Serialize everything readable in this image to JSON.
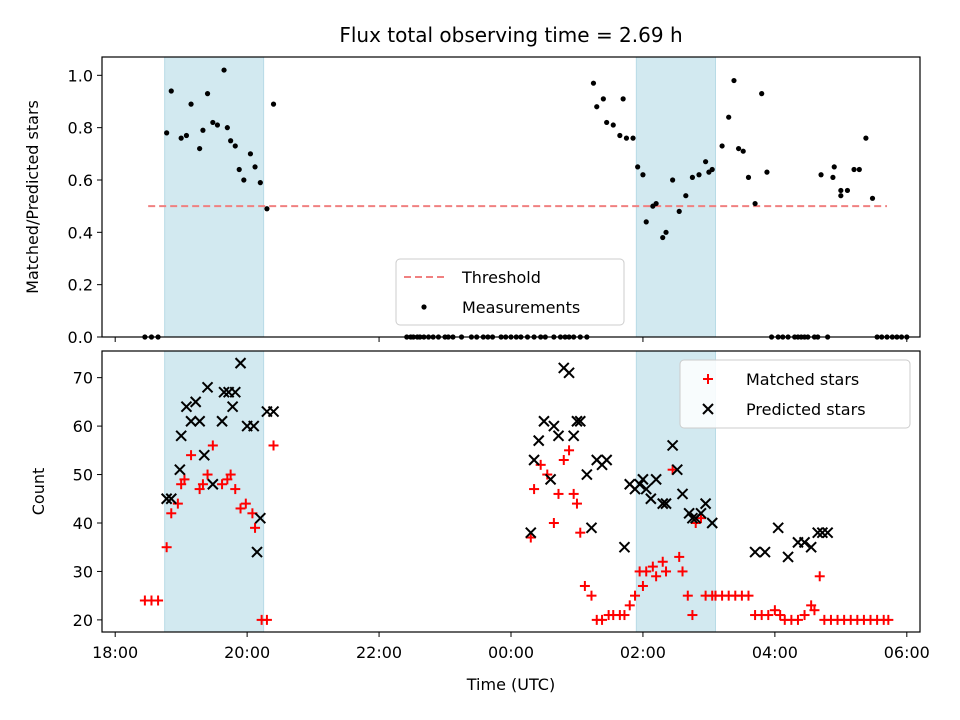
{
  "chart_data": [
    {
      "type": "scatter",
      "title": "Flux total observing time = 2.69 h",
      "ylabel": "Matched/Predicted stars",
      "xlabel": "",
      "ylim": [
        0,
        1.07
      ],
      "yticks": [
        "0.0",
        "0.2",
        "0.4",
        "0.6",
        "0.8",
        "1.0"
      ],
      "ytick_values": [
        0,
        0.2,
        0.4,
        0.6,
        0.8,
        1.0
      ],
      "x_unit": "hours since 18:00 UTC",
      "xlim": [
        -0.2,
        12.2
      ],
      "xtick_values": [
        0,
        4,
        8,
        12
      ],
      "shaded_intervals": [
        [
          0.75,
          2.25
        ],
        [
          7.9,
          9.1
        ]
      ],
      "shade_color": "#d2e9f0",
      "threshold": 0.5,
      "threshold_x_range": [
        0.5,
        11.7
      ],
      "threshold_color": "#f08080",
      "point_color": "#000000",
      "legend": {
        "position": "lower-center",
        "entries": [
          "Threshold",
          "Measurements"
        ]
      },
      "series": [
        {
          "name": "Measurements",
          "x": [
            0.45,
            0.55,
            0.65,
            0.78,
            0.85,
            1.0,
            1.08,
            1.15,
            1.28,
            1.33,
            1.4,
            1.48,
            1.55,
            1.65,
            1.7,
            1.75,
            1.82,
            1.88,
            1.95,
            2.05,
            2.12,
            2.2,
            2.3,
            2.4,
            7.25,
            7.3,
            7.4,
            7.45,
            7.55,
            7.65,
            7.7,
            7.75,
            7.85,
            7.92,
            8.0,
            8.05,
            8.15,
            8.2,
            8.3,
            8.35,
            8.45,
            8.55,
            8.65,
            8.75,
            8.85,
            8.95,
            9.0,
            9.05,
            9.2,
            9.3,
            9.38,
            9.45,
            9.52,
            9.6,
            9.7,
            9.8,
            9.88,
            9.95,
            10.05,
            10.12,
            10.2,
            10.3,
            10.35,
            10.4,
            10.45,
            10.5,
            10.6,
            10.65,
            10.7,
            10.8,
            10.9,
            11.0,
            4.42,
            4.48,
            4.52,
            4.58,
            4.62,
            4.68,
            4.75,
            4.82,
            4.9,
            5.0,
            5.05,
            5.12,
            5.25,
            5.4,
            5.48,
            5.58,
            5.65,
            5.72,
            5.85,
            5.92,
            6.0,
            6.08,
            6.15,
            6.25,
            6.35,
            6.45,
            6.52,
            6.65,
            6.75,
            6.82,
            6.88,
            6.95,
            7.05,
            7.15,
            10.88,
            11.0,
            11.1,
            11.2,
            11.28,
            11.38,
            11.48,
            11.55,
            11.62,
            11.7,
            11.78,
            11.85,
            11.92,
            12.0
          ],
          "y": [
            0.0,
            0.0,
            0.0,
            0.78,
            0.94,
            0.76,
            0.77,
            0.89,
            0.72,
            0.79,
            0.93,
            0.82,
            0.81,
            1.02,
            0.8,
            0.75,
            0.73,
            0.64,
            0.6,
            0.7,
            0.65,
            0.59,
            0.49,
            0.89,
            0.97,
            0.88,
            0.91,
            0.82,
            0.81,
            0.77,
            0.91,
            0.76,
            0.76,
            0.65,
            0.62,
            0.44,
            0.5,
            0.51,
            0.38,
            0.4,
            0.6,
            0.48,
            0.54,
            0.61,
            0.62,
            0.67,
            0.63,
            0.64,
            0.73,
            0.84,
            0.98,
            0.72,
            0.71,
            0.61,
            0.51,
            0.93,
            0.63,
            0.0,
            0.0,
            0.0,
            0.0,
            0.0,
            0.0,
            0.0,
            0.0,
            0.0,
            0.0,
            0.0,
            0.62,
            0.0,
            0.65,
            0.54,
            0.0,
            0.0,
            0.0,
            0.0,
            0.0,
            0.0,
            0.0,
            0.0,
            0.0,
            0.0,
            0.0,
            0.0,
            0.0,
            0.0,
            0.0,
            0.0,
            0.0,
            0.0,
            0.0,
            0.0,
            0.0,
            0.0,
            0.0,
            0.0,
            0.0,
            0.0,
            0.0,
            0.0,
            0.0,
            0.0,
            0.0,
            0.0,
            0.0,
            0.0,
            0.61,
            0.56,
            0.56,
            0.64,
            0.64,
            0.76,
            0.53,
            0.0,
            0.0,
            0.0,
            0.0,
            0.0,
            0.0,
            0.0
          ]
        }
      ]
    },
    {
      "type": "scatter",
      "title": "",
      "ylabel": "Count",
      "xlabel": "Time (UTC)",
      "ylim": [
        17.5,
        75.5
      ],
      "yticks": [
        "20",
        "30",
        "40",
        "50",
        "60",
        "70"
      ],
      "ytick_values": [
        20,
        30,
        40,
        50,
        60,
        70
      ],
      "x_unit": "hours since 18:00 UTC",
      "xlim": [
        -0.2,
        12.2
      ],
      "xticks": [
        "18:00",
        "20:00",
        "22:00",
        "00:00",
        "02:00",
        "04:00",
        "06:00"
      ],
      "xtick_values": [
        0,
        2,
        4,
        6,
        8,
        10,
        12
      ],
      "shaded_intervals": [
        [
          0.75,
          2.25
        ],
        [
          7.9,
          9.1
        ]
      ],
      "shade_color": "#d2e9f0",
      "legend": {
        "position": "top-right",
        "entries": [
          "Matched stars",
          "Predicted stars"
        ]
      },
      "series": [
        {
          "name": "Matched stars",
          "color": "#ff0000",
          "marker": "plus",
          "x": [
            0.45,
            0.55,
            0.65,
            0.78,
            0.85,
            0.95,
            1.0,
            1.05,
            1.15,
            1.28,
            1.33,
            1.4,
            1.48,
            1.62,
            1.7,
            1.75,
            1.82,
            1.9,
            1.98,
            2.08,
            2.12,
            2.22,
            2.3,
            2.4,
            6.3,
            6.35,
            6.45,
            6.55,
            6.65,
            6.72,
            6.8,
            6.88,
            6.95,
            7.0,
            7.05,
            7.12,
            7.22,
            7.3,
            7.38,
            7.48,
            7.55,
            7.65,
            7.72,
            7.8,
            7.88,
            7.95,
            8.0,
            8.05,
            8.15,
            8.2,
            8.3,
            8.35,
            8.45,
            8.55,
            8.6,
            8.68,
            8.75,
            8.8,
            8.88,
            8.95,
            9.05,
            9.1,
            9.2,
            9.3,
            9.4,
            9.5,
            9.6,
            9.7,
            9.8,
            9.9,
            10.0,
            10.08,
            10.15,
            10.25,
            10.35,
            10.45,
            10.55,
            10.6,
            10.68,
            10.75,
            10.85,
            10.95,
            11.05,
            11.15,
            11.25,
            11.35,
            11.45,
            11.55,
            11.65,
            11.72
          ],
          "y": [
            24,
            24,
            24,
            35,
            42,
            44,
            48,
            49,
            54,
            47,
            48,
            50,
            56,
            48,
            49,
            50,
            47,
            43,
            44,
            42,
            39,
            20,
            20,
            56,
            37,
            47,
            52,
            50,
            40,
            46,
            53,
            55,
            46,
            44,
            38,
            27,
            25,
            20,
            20,
            21,
            21,
            21,
            21,
            23,
            25,
            30,
            27,
            30,
            31,
            29,
            32,
            30,
            51,
            33,
            30,
            25,
            21,
            40,
            41,
            25,
            25,
            25,
            25,
            25,
            25,
            25,
            25,
            21,
            21,
            21,
            22,
            21,
            20,
            20,
            20,
            21,
            23,
            22,
            29,
            20,
            20,
            20,
            20,
            20,
            20,
            20,
            20,
            20,
            20,
            20
          ]
        },
        {
          "name": "Predicted stars",
          "color": "#000000",
          "marker": "x",
          "x": [
            0.78,
            0.85,
            0.98,
            1.0,
            1.08,
            1.15,
            1.22,
            1.28,
            1.35,
            1.4,
            1.48,
            1.62,
            1.65,
            1.72,
            1.78,
            1.82,
            1.9,
            2.0,
            2.1,
            2.15,
            2.2,
            2.3,
            2.4,
            6.3,
            6.35,
            6.42,
            6.5,
            6.6,
            6.65,
            6.72,
            6.8,
            6.88,
            6.95,
            7.0,
            7.05,
            7.15,
            7.22,
            7.3,
            7.38,
            7.45,
            7.72,
            7.8,
            7.88,
            7.95,
            8.0,
            8.05,
            8.12,
            8.2,
            8.3,
            8.35,
            8.45,
            8.52,
            8.6,
            8.7,
            8.75,
            8.8,
            8.88,
            8.95,
            9.05,
            9.7,
            9.85,
            10.05,
            10.2,
            10.35,
            10.45,
            10.55,
            10.65,
            10.72,
            10.8
          ],
          "y": [
            45,
            45,
            51,
            58,
            64,
            61,
            65,
            61,
            54,
            68,
            48,
            61,
            67,
            67,
            64,
            67,
            73,
            60,
            60,
            34,
            41,
            63,
            63,
            38,
            53,
            57,
            61,
            49,
            60,
            58,
            72,
            71,
            58,
            61,
            61,
            50,
            39,
            53,
            52,
            53,
            35,
            48,
            47,
            48,
            49,
            47,
            45,
            49,
            44,
            44,
            56,
            51,
            46,
            42,
            41,
            41,
            42,
            44,
            40,
            34,
            34,
            39,
            33,
            36,
            36,
            35,
            38,
            38,
            38
          ]
        }
      ]
    }
  ]
}
